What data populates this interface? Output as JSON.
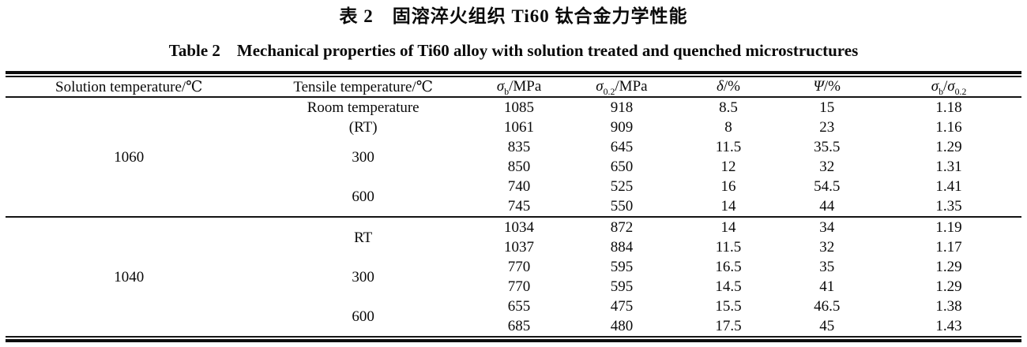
{
  "page": {
    "title_cn": "表 2　固溶淬火组织 Ti60 钛合金力学性能",
    "title_en": "Table 2　Mechanical properties of Ti60 alloy with solution treated and quenched microstructures"
  },
  "table": {
    "header": {
      "col1": "Solution temperature/℃",
      "col2": "Tensile temperature/℃",
      "col3": {
        "sym": "σ",
        "sub": "b",
        "rest": "/MPa"
      },
      "col4": {
        "sym": "σ",
        "sub": "0.2",
        "rest": "/MPa"
      },
      "col5": {
        "sym": "δ",
        "rest": "/%"
      },
      "col6": {
        "sym": "Ψ",
        "rest": "/%"
      },
      "col7": {
        "sym": "σ",
        "sub": "b",
        "rest": "/",
        "sym2": "σ",
        "sub2": "0.2"
      }
    },
    "sections": [
      {
        "solution_temp": "1060",
        "groups": [
          {
            "label_lines": [
              "Room temperature",
              "(RT)"
            ],
            "rows": [
              [
                "1085",
                "918",
                "8.5",
                "15",
                "1.18"
              ],
              [
                "1061",
                "909",
                "8",
                "23",
                "1.16"
              ]
            ]
          },
          {
            "label_lines": [
              "300"
            ],
            "rows": [
              [
                "835",
                "645",
                "11.5",
                "35.5",
                "1.29"
              ],
              [
                "850",
                "650",
                "12",
                "32",
                "1.31"
              ]
            ]
          },
          {
            "label_lines": [
              "600"
            ],
            "rows": [
              [
                "740",
                "525",
                "16",
                "54.5",
                "1.41"
              ],
              [
                "745",
                "550",
                "14",
                "44",
                "1.35"
              ]
            ]
          }
        ]
      },
      {
        "solution_temp": "1040",
        "groups": [
          {
            "label_lines": [
              "RT"
            ],
            "rows": [
              [
                "1034",
                "872",
                "14",
                "34",
                "1.19"
              ],
              [
                "1037",
                "884",
                "11.5",
                "32",
                "1.17"
              ]
            ]
          },
          {
            "label_lines": [
              "300"
            ],
            "rows": [
              [
                "770",
                "595",
                "16.5",
                "35",
                "1.29"
              ],
              [
                "770",
                "595",
                "14.5",
                "41",
                "1.29"
              ]
            ]
          },
          {
            "label_lines": [
              "600"
            ],
            "rows": [
              [
                "655",
                "475",
                "15.5",
                "46.5",
                "1.38"
              ],
              [
                "685",
                "480",
                "17.5",
                "45",
                "1.43"
              ]
            ]
          }
        ]
      }
    ]
  }
}
